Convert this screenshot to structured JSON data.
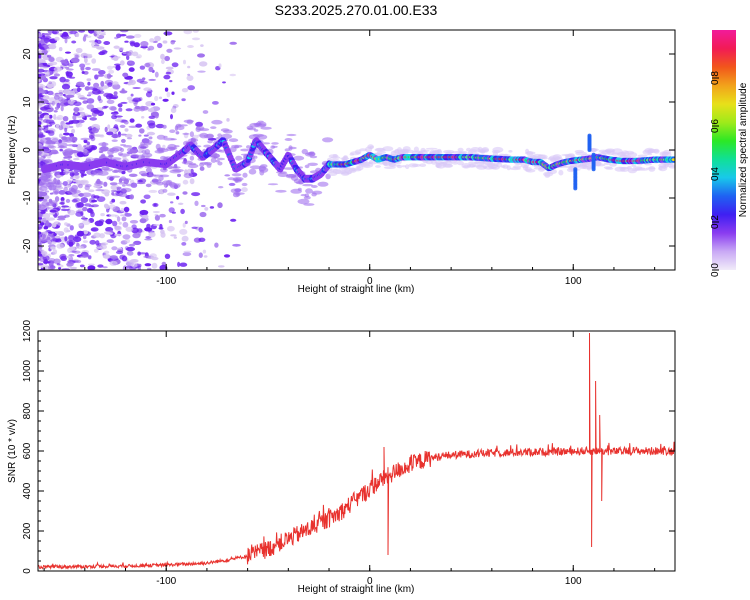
{
  "title": "S233.2025.270.01.00.E33",
  "colors": {
    "snr_line": "#e8322e",
    "scatter_faint": "#d6c4f2",
    "scatter_mid": "#a172ee",
    "scatter_dark": "#6a1ef0"
  },
  "chart_data": [
    {
      "type": "heatmap",
      "title": "S233.2025.270.01.00.E33",
      "xlabel": "Height of straight line (km)",
      "ylabel": "Frequency (Hz)",
      "xlim": [
        -163,
        150
      ],
      "ylim": [
        -25,
        25
      ],
      "xticks": [
        -100,
        0,
        100
      ],
      "yticks": [
        -20,
        -10,
        0,
        10,
        20
      ],
      "colorbar": {
        "label": "Normalized spectral amplitude",
        "range": [
          0,
          1
        ],
        "ticks": [
          0.0,
          0.2,
          0.4,
          0.6,
          0.8
        ],
        "stops": [
          "#f1ecf9",
          "#c9a9f5",
          "#8a3cf0",
          "#3f1ff2",
          "#1f62f2",
          "#18c9ea",
          "#10e096",
          "#2ce825",
          "#9fea1a",
          "#e8e01a",
          "#f2a21b",
          "#f2561b",
          "#f21b55",
          "#f21b9a"
        ]
      },
      "ridge_line": {
        "x": [
          -160,
          -150,
          -140,
          -130,
          -120,
          -110,
          -100,
          -92,
          -88,
          -82,
          -76,
          -72,
          -66,
          -60,
          -56,
          -52,
          -48,
          -44,
          -40,
          -36,
          -32,
          -28,
          -24,
          -20,
          -16,
          -12,
          -8,
          -4,
          0,
          4,
          8,
          12,
          16,
          20,
          30,
          40,
          50,
          60,
          70,
          76,
          80,
          84,
          88,
          92,
          96,
          100,
          104,
          108,
          112,
          118,
          124,
          130,
          140,
          150
        ],
        "y": [
          -4,
          -3,
          -3.5,
          -2.5,
          -3.5,
          -2.5,
          -3,
          -0.5,
          1,
          -1.5,
          0.5,
          2,
          -4,
          -2.5,
          2,
          0,
          -2,
          -4,
          -1,
          -4,
          -6,
          -6,
          -5,
          -3,
          -3,
          -3,
          -2.5,
          -2,
          -1,
          -2,
          -1.5,
          -2,
          -1.5,
          -1.5,
          -1.5,
          -1.5,
          -1.5,
          -1.8,
          -2,
          -2,
          -2.5,
          -2.5,
          -3.8,
          -3,
          -2.5,
          -2.2,
          -2,
          -1.8,
          -1.5,
          -2,
          -2.3,
          -2.3,
          -2,
          -2
        ]
      }
    },
    {
      "type": "line",
      "xlabel": "Height of straight line (km)",
      "ylabel": "SNR (10 * v/v)",
      "xlim": [
        -163,
        150
      ],
      "ylim": [
        0,
        1200
      ],
      "xticks": [
        -100,
        0,
        100
      ],
      "yticks": [
        0,
        200,
        400,
        600,
        800,
        1000,
        1200
      ],
      "series": [
        {
          "name": "SNR",
          "envelope_x": [
            -163,
            -140,
            -120,
            -100,
            -90,
            -80,
            -70,
            -60,
            -50,
            -40,
            -30,
            -20,
            -15,
            -10,
            -5,
            0,
            5,
            10,
            15,
            20,
            25,
            30,
            40,
            50,
            60,
            70,
            80,
            90,
            100,
            105,
            110,
            115,
            120,
            130,
            140,
            150
          ],
          "envelope_y": [
            20,
            22,
            25,
            30,
            35,
            40,
            55,
            75,
            110,
            160,
            210,
            260,
            290,
            330,
            370,
            410,
            450,
            480,
            510,
            530,
            550,
            565,
            580,
            585,
            590,
            592,
            595,
            596,
            598,
            600,
            600,
            598,
            598,
            600,
            600,
            600
          ],
          "spikes": [
            {
              "x": 7,
              "y": 620
            },
            {
              "x": 9,
              "y": 80
            },
            {
              "x": 108,
              "y": 1190
            },
            {
              "x": 109,
              "y": 120
            },
            {
              "x": 111,
              "y": 950
            },
            {
              "x": 113,
              "y": 780
            },
            {
              "x": 114,
              "y": 350
            }
          ]
        }
      ]
    }
  ]
}
